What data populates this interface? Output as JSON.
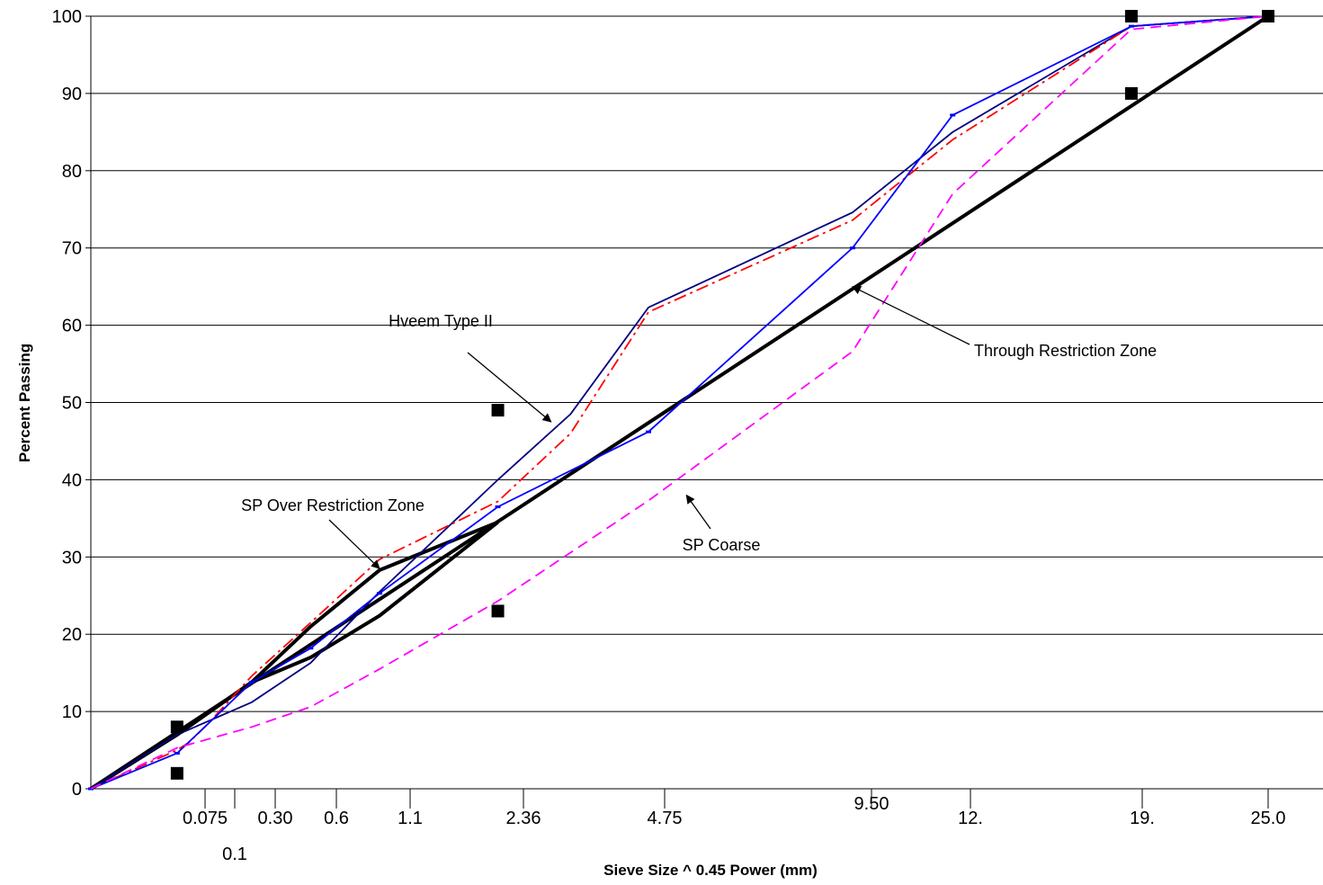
{
  "chart_data": {
    "type": "line",
    "title": "",
    "xlabel": "Sieve Size ^ 0.45 Power (mm)",
    "ylabel": "Percent Passing",
    "x_scale": "power 0.45",
    "x_ticks": [
      "0.075",
      "0.1",
      "0.30",
      "0.6",
      "1.1",
      "2.36",
      "4.75",
      "9.50",
      "12.",
      "19.",
      "25.0"
    ],
    "ylim": [
      0,
      100
    ],
    "y_ticks": [
      "0",
      "10",
      "20",
      "30",
      "40",
      "50",
      "60",
      "70",
      "80",
      "90",
      "100"
    ],
    "grid": "horizontal",
    "legend": "none",
    "series": [
      {
        "style": "thick black solid",
        "color": "#000000",
        "points": [
          [
            0,
            0
          ],
          [
            25.0,
            100
          ]
        ]
      },
      {
        "style": "thick black solid",
        "color": "#000000",
        "points": [
          [
            0,
            0
          ],
          [
            0.075,
            7
          ],
          [
            0.3,
            13.8
          ],
          [
            0.6,
            17
          ],
          [
            1.1,
            22.4
          ],
          [
            2.36,
            34.5
          ]
        ]
      },
      {
        "style": "thick black solid",
        "color": "#000000",
        "points": [
          [
            0,
            0
          ],
          [
            0.075,
            7
          ],
          [
            0.3,
            13.8
          ],
          [
            0.6,
            21
          ],
          [
            1.1,
            28.3
          ],
          [
            2.36,
            34.5
          ]
        ]
      },
      {
        "style": "navy solid",
        "color": "#000080",
        "points": [
          [
            0,
            0
          ],
          [
            0.075,
            7
          ],
          [
            0.3,
            11.2
          ],
          [
            0.6,
            16.3
          ],
          [
            1.1,
            25.5
          ],
          [
            2.36,
            40
          ],
          [
            3.4,
            48.5
          ],
          [
            4.75,
            62.3
          ],
          [
            9.5,
            74.6
          ],
          [
            12.5,
            85
          ],
          [
            19.0,
            98.7
          ],
          [
            25.0,
            100
          ]
        ]
      },
      {
        "style": "red dash-dot",
        "color": "#ff0000",
        "points": [
          [
            0,
            0
          ],
          [
            0.075,
            5
          ],
          [
            0.1,
            6
          ],
          [
            0.15,
            8.5
          ],
          [
            0.3,
            14.6
          ],
          [
            0.6,
            21.5
          ],
          [
            1.1,
            29.7
          ],
          [
            2.36,
            37.2
          ],
          [
            3.4,
            46
          ],
          [
            4.75,
            61.7
          ],
          [
            9.5,
            73.6
          ],
          [
            12.5,
            84
          ],
          [
            19.0,
            98.7
          ],
          [
            25.0,
            100
          ]
        ]
      },
      {
        "style": "blue solid with small markers",
        "color": "#0000ff",
        "points": [
          [
            0,
            0
          ],
          [
            0.075,
            4.6
          ],
          [
            0.3,
            13.8
          ],
          [
            0.6,
            18.2
          ],
          [
            1.1,
            25.3
          ],
          [
            2.36,
            36.5
          ],
          [
            4.75,
            46.2
          ],
          [
            9.5,
            70
          ],
          [
            12.5,
            87.2
          ],
          [
            19.0,
            98.7
          ],
          [
            25.0,
            100
          ]
        ]
      },
      {
        "style": "magenta dashed",
        "color": "#ff00ff",
        "points": [
          [
            0,
            0
          ],
          [
            0.075,
            5.3
          ],
          [
            0.3,
            8
          ],
          [
            0.6,
            10.6
          ],
          [
            1.1,
            15.5
          ],
          [
            2.36,
            24.3
          ],
          [
            4.75,
            37.3
          ],
          [
            9.5,
            56.6
          ],
          [
            12.5,
            77
          ],
          [
            19.0,
            98.3
          ],
          [
            25.0,
            100
          ]
        ]
      }
    ],
    "control_points": [
      {
        "x": 0.075,
        "y": 2
      },
      {
        "x": 0.075,
        "y": 8
      },
      {
        "x": 2.36,
        "y": 23
      },
      {
        "x": 2.36,
        "y": 49
      },
      {
        "x": 19.0,
        "y": 90
      },
      {
        "x": 19.0,
        "y": 100
      },
      {
        "x": 25.0,
        "y": 100
      }
    ],
    "annotations": [
      {
        "text": "Hveem Type II",
        "arrow_to": {
          "x": 3.1,
          "y": 47.5
        }
      },
      {
        "text": "Through Restriction Zone",
        "arrow_to": {
          "x": 9.5,
          "y": 65
        }
      },
      {
        "text": "SP Over Restriction Zone",
        "arrow_to": {
          "x": 1.1,
          "y": 28.5
        }
      },
      {
        "text": "SP Coarse",
        "arrow_to": {
          "x": 5.5,
          "y": 38
        }
      }
    ]
  }
}
